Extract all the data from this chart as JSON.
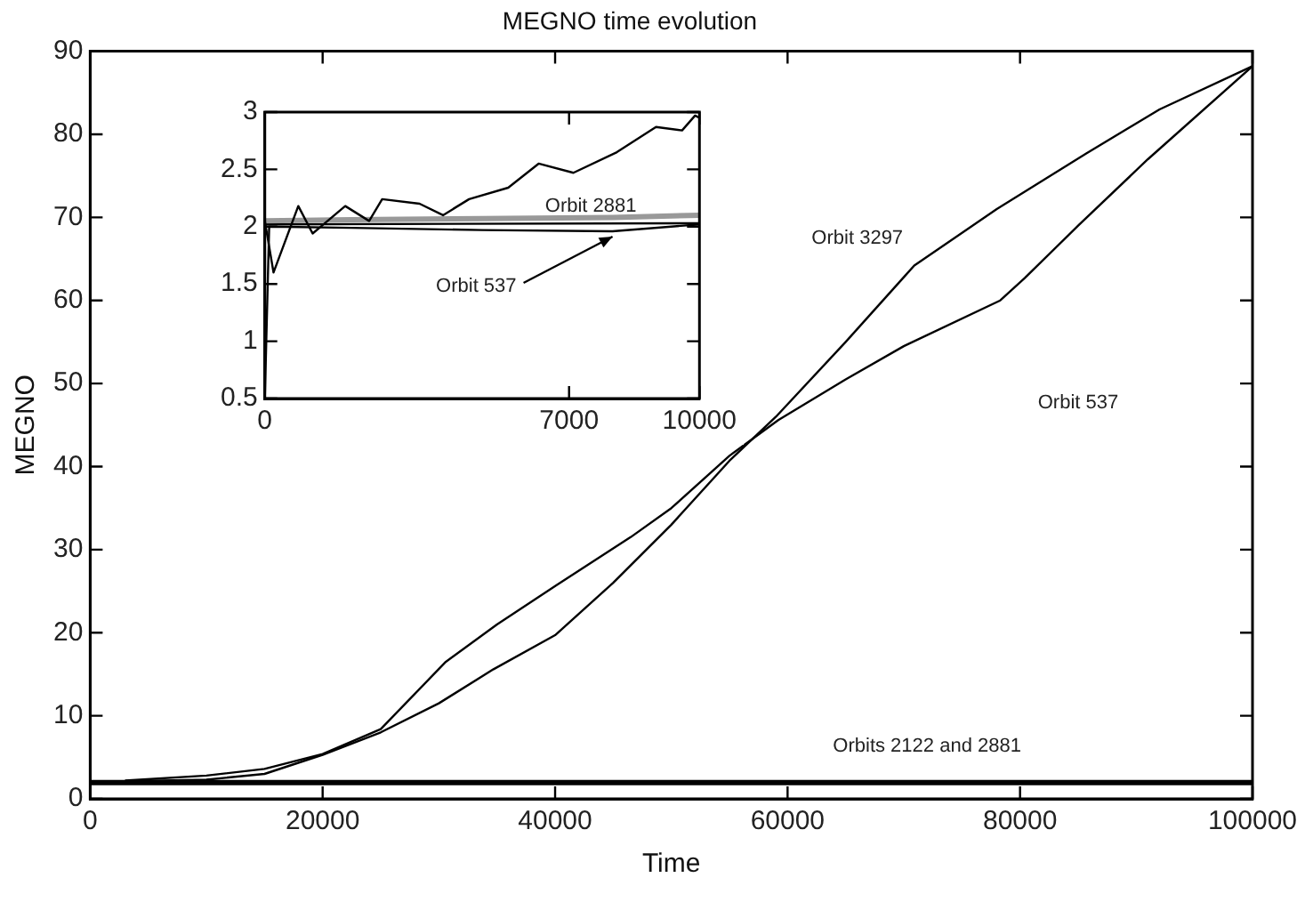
{
  "chart_data": [
    {
      "type": "line",
      "title": "MEGNO time evolution",
      "xlabel": "Time",
      "ylabel": "MEGNO",
      "xlim": [
        0,
        100000
      ],
      "xticks": [
        0,
        20000,
        40000,
        60000,
        80000,
        100000
      ],
      "ylim": [
        0,
        90
      ],
      "yticks": [
        0,
        10,
        20,
        30,
        40,
        50,
        60,
        70,
        80,
        90
      ],
      "grid": false,
      "legend": false,
      "marker": "none",
      "line_style": "solid",
      "series": [
        {
          "color": "#000000",
          "x": [
            0,
            10000,
            15000,
            20000,
            25000,
            30000,
            34700,
            40000,
            45000,
            50000,
            55000,
            59000,
            65000,
            70900,
            78000,
            85700,
            92000,
            100000
          ],
          "values": [
            2,
            2.3,
            3,
            5.3,
            8,
            11.5,
            15.6,
            19.7,
            26,
            33,
            40.7,
            46,
            55,
            64.2,
            71,
            77.7,
            83,
            88.2
          ]
        },
        {
          "color": "#000000",
          "x": [
            3000,
            10000,
            15000,
            20000,
            25000,
            30600,
            35000,
            40100,
            46500,
            50000,
            55000,
            59200,
            65000,
            70000,
            78300,
            80400,
            85000,
            91000,
            100000
          ],
          "values": [
            2.2,
            2.8,
            3.6,
            5.4,
            8.4,
            16.5,
            21,
            25.7,
            31.5,
            35,
            41.3,
            45.6,
            50.5,
            54.5,
            60,
            62.7,
            69,
            77,
            88.2
          ]
        },
        {
          "color": "#000000",
          "x": [
            0,
            100000
          ],
          "values": [
            2,
            2
          ]
        },
        {
          "color": "#000000",
          "x": [
            0,
            100000
          ],
          "values": [
            1.9,
            1.9
          ]
        }
      ],
      "annotations": [
        "Orbit 3297",
        "Orbit 537",
        "Orbits 2122 and 2881"
      ]
    },
    {
      "type": "line",
      "xlim": [
        0,
        10000
      ],
      "xticks": [
        0,
        7000,
        10000
      ],
      "ylim": [
        0.5,
        3
      ],
      "yticks": [
        0.5,
        1,
        1.5,
        2,
        2.5,
        3
      ],
      "grid": false,
      "legend": false,
      "marker": "none",
      "line_style": "solid",
      "series": [
        {
          "color": "#000000",
          "x": [
            0,
            200,
            770,
            1100,
            1850,
            2400,
            2700,
            3560,
            4100,
            4700,
            5600,
            6300,
            7100,
            8100,
            9000,
            9600,
            9900,
            10000
          ],
          "values": [
            2.05,
            1.6,
            2.18,
            1.94,
            2.18,
            2.05,
            2.24,
            2.2,
            2.1,
            2.24,
            2.34,
            2.55,
            2.47,
            2.65,
            2.87,
            2.84,
            2.97,
            2.95
          ]
        },
        {
          "color": "#000000",
          "x": [
            0,
            100,
            2000,
            5000,
            8000,
            10000
          ],
          "values": [
            0.5,
            2,
            1.99,
            1.97,
            1.96,
            2.02
          ]
        },
        {
          "color": "#999999",
          "x": [
            0,
            2000,
            5000,
            8000,
            10000
          ],
          "values": [
            2.05,
            2.06,
            2.07,
            2.08,
            2.1
          ]
        },
        {
          "color": "#000000",
          "x": [
            0,
            10000
          ],
          "values": [
            2.02,
            2.03
          ]
        }
      ],
      "annotations": [
        "Orbit 2881",
        {
          "text": "Orbit 537",
          "x": 8000,
          "y": 1.96
        }
      ]
    }
  ]
}
